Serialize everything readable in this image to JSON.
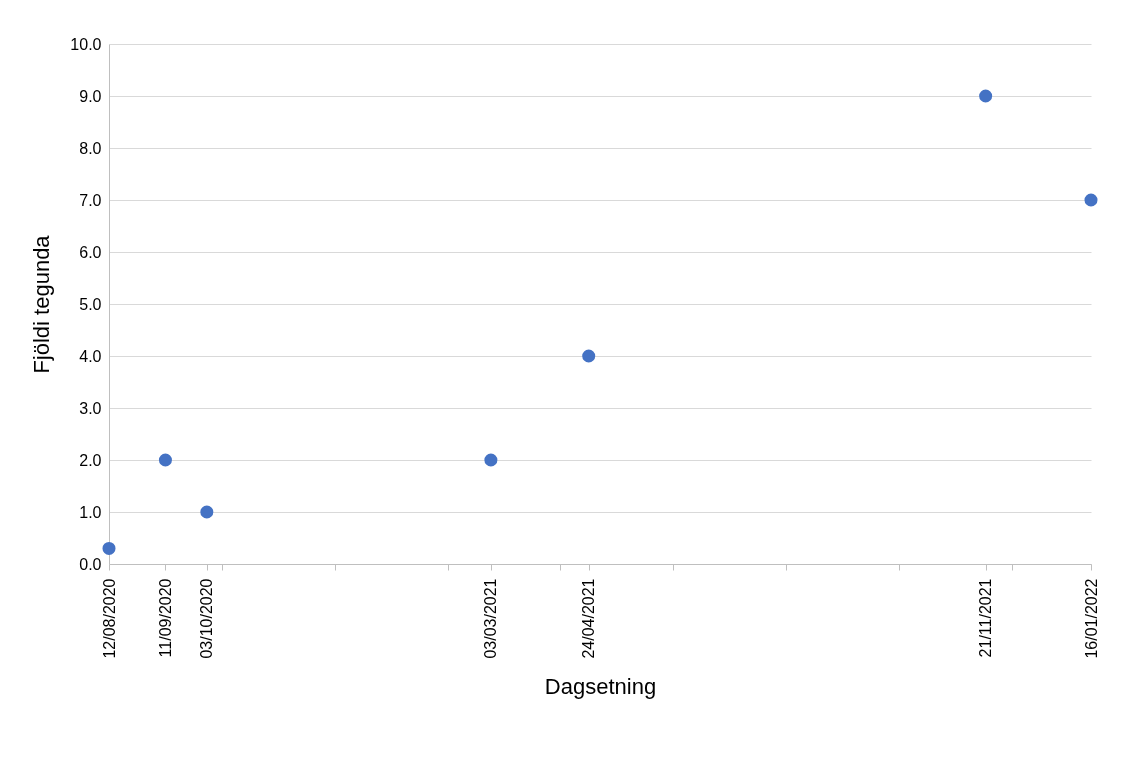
{
  "chart_data": {
    "type": "scatter",
    "xlabel": "Dagsetning",
    "ylabel": "Fjöldi tegunda",
    "x": [
      "2020-08-12",
      "2020-09-11",
      "2020-10-03",
      "2021-03-03",
      "2021-04-24",
      "2021-11-21",
      "2022-01-16"
    ],
    "series": [
      {
        "color": "#4472c4",
        "values": [
          0.3,
          2,
          1,
          2,
          4,
          9,
          7
        ]
      }
    ],
    "xlim": [
      "2020-08-12",
      "2022-01-16"
    ],
    "xticks": [
      {
        "value": "2020-08-12",
        "label": "12/08/2020"
      },
      {
        "value": "2020-09-11",
        "label": "11/09/2020"
      },
      {
        "value": "2020-10-03",
        "label": "03/10/2020"
      },
      {
        "value": "2020-10-11",
        "label": null
      },
      {
        "value": "2020-12-10",
        "label": null
      },
      {
        "value": "2021-02-08",
        "label": null
      },
      {
        "value": "2021-03-03",
        "label": "03/03/2021"
      },
      {
        "value": "2021-04-09",
        "label": null
      },
      {
        "value": "2021-04-24",
        "label": "24/04/2021"
      },
      {
        "value": "2021-06-08",
        "label": null
      },
      {
        "value": "2021-08-07",
        "label": null
      },
      {
        "value": "2021-10-06",
        "label": null
      },
      {
        "value": "2021-11-21",
        "label": "21/11/2021"
      },
      {
        "value": "2021-12-05",
        "label": null
      },
      {
        "value": "2022-01-16",
        "label": "16/01/2022"
      }
    ],
    "ylim": [
      0,
      10
    ],
    "yticks": [
      {
        "value": 0,
        "label": "0.0"
      },
      {
        "value": 1,
        "label": "1.0"
      },
      {
        "value": 2,
        "label": "2.0"
      },
      {
        "value": 3,
        "label": "3.0"
      },
      {
        "value": 4,
        "label": "4.0"
      },
      {
        "value": 5,
        "label": "5.0"
      },
      {
        "value": 6,
        "label": "6.0"
      },
      {
        "value": 7,
        "label": "7.0"
      },
      {
        "value": 8,
        "label": "8.0"
      },
      {
        "value": 9,
        "label": "9.0"
      },
      {
        "value": 10,
        "label": "10.0"
      }
    ],
    "grid": "y",
    "legend": false,
    "marker": "circle"
  }
}
